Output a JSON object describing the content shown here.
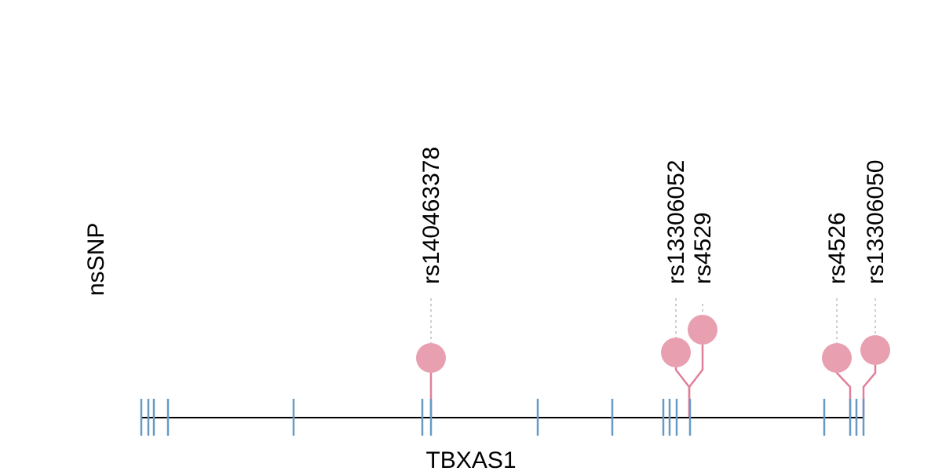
{
  "track_label": "nsSNP",
  "gene_name": "TBXAS1",
  "colors": {
    "exon": "#6699c4",
    "backbone": "#000000",
    "snp": "#e8a0b0",
    "stem": "#e07f9a",
    "guide": "#bbbbbb"
  },
  "exon_markers": [
    {
      "id": 1
    },
    {
      "id": 2
    },
    {
      "id": 3
    },
    {
      "id": 4
    },
    {
      "id": 5
    },
    {
      "id": 6
    },
    {
      "id": 7
    },
    {
      "id": 8
    },
    {
      "id": 9
    },
    {
      "id": 10
    },
    {
      "id": 11
    },
    {
      "id": 12
    },
    {
      "id": 13
    },
    {
      "id": 14
    },
    {
      "id": 15
    },
    {
      "id": 16
    }
  ],
  "snps": [
    {
      "label": "rs140463378"
    },
    {
      "label": "rs13306052"
    },
    {
      "label": "rs4529"
    },
    {
      "label": "rs4526"
    },
    {
      "label": "rs13306050"
    }
  ]
}
